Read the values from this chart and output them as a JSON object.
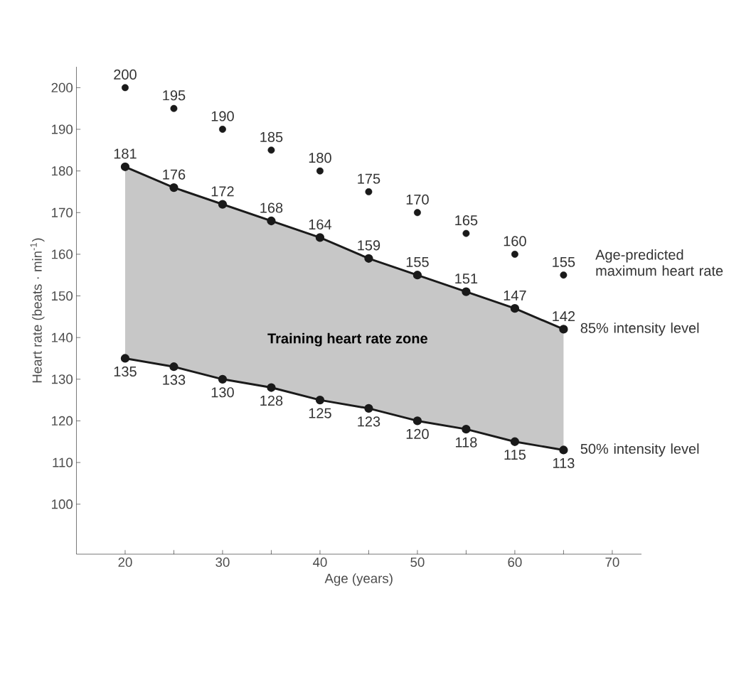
{
  "chart_data": {
    "type": "line",
    "xlabel": "Age (years)",
    "ylabel": "Heart rate (beats · min$^{-1}$)",
    "x": [
      20,
      25,
      30,
      35,
      40,
      45,
      50,
      55,
      60,
      65
    ],
    "series": [
      {
        "name": "Age-predicted maximum heart rate",
        "type": "scatter",
        "color": "#1a1a1a",
        "values": [
          200,
          195,
          190,
          185,
          180,
          175,
          170,
          165,
          160,
          155
        ]
      },
      {
        "name": "85% intensity level",
        "color": "#1a1a1a",
        "values": [
          181,
          176,
          172,
          168,
          164,
          159,
          155,
          151,
          147,
          142
        ]
      },
      {
        "name": "50% intensity level",
        "color": "#1a1a1a",
        "values": [
          135,
          133,
          130,
          128,
          125,
          123,
          120,
          118,
          115,
          113
        ]
      }
    ],
    "xlim": [
      15,
      73
    ],
    "ylim": [
      88,
      205
    ],
    "xticks": [
      20,
      {
        "value": 25,
        "label": null
      },
      30,
      {
        "value": 35,
        "label": null
      },
      40,
      {
        "value": 45,
        "label": null
      },
      50,
      {
        "value": 55,
        "label": null
      },
      60,
      {
        "value": 65,
        "label": null
      },
      70
    ],
    "yticks": [
      100,
      110,
      120,
      130,
      140,
      150,
      160,
      170,
      180,
      190,
      200
    ],
    "annotations": [
      "Training heart rate zone"
    ],
    "data_labels": true,
    "marker": "circle",
    "line_style": "solid",
    "grid": false
  }
}
